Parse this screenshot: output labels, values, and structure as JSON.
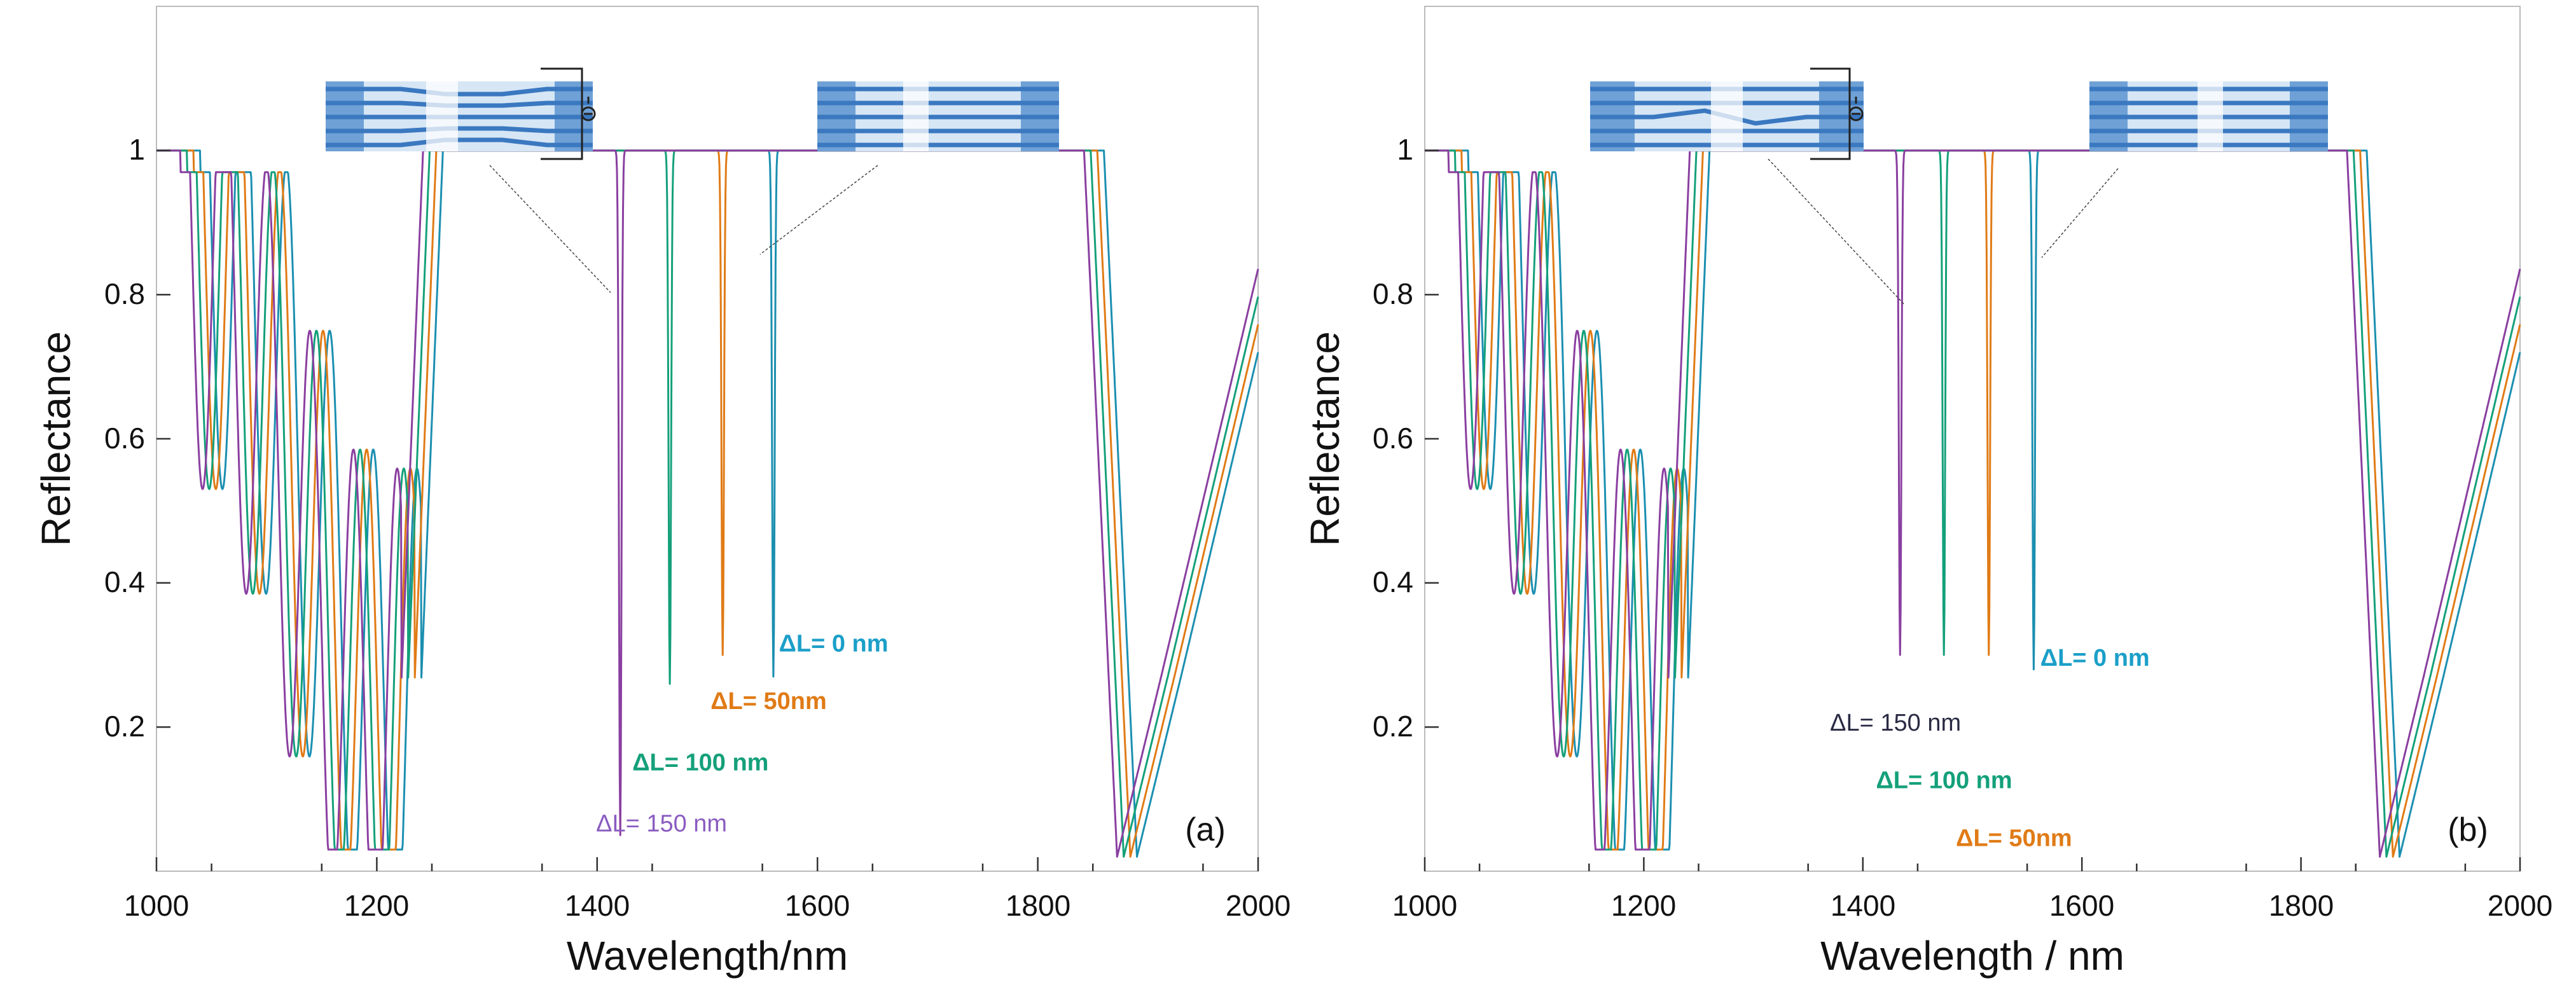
{
  "chart_data": [
    {
      "type": "line",
      "panel_label": "(a)",
      "xlabel": "Wavelength/nm",
      "ylabel": "Reflectance",
      "xlim": [
        1000,
        2000
      ],
      "ylim": [
        0,
        1.2
      ],
      "x_ticks": [
        1000,
        1200,
        1400,
        1600,
        1800,
        2000
      ],
      "x_tick_labels": [
        "1000",
        "1200",
        "1400",
        "1600",
        "1800",
        "2000"
      ],
      "y_ticks": [
        0.2,
        0.4,
        0.6,
        0.8,
        1.0
      ],
      "y_tick_labels": [
        "0.2",
        "0.4",
        "0.6",
        "0.8",
        "1"
      ],
      "grid": false,
      "series": [
        {
          "name": "ΔL= 0 nm",
          "color": "#1b8fb0",
          "dip_x": 1560,
          "dip_y": 0.27,
          "shift": 0
        },
        {
          "name": "ΔL= 50nm",
          "color": "#e07b16",
          "dip_x": 1514,
          "dip_y": 0.3,
          "shift": -6
        },
        {
          "name": "ΔL= 100 nm",
          "color": "#14a07a",
          "dip_x": 1466,
          "dip_y": 0.26,
          "shift": -12
        },
        {
          "name": "ΔL= 150 nm",
          "color": "#8a3fa0",
          "dip_x": 1421,
          "dip_y": 0.05,
          "shift": -18
        }
      ],
      "annotations": [
        {
          "text": "ΔL= 0 nm",
          "color": "#1b9fc8",
          "bold": true,
          "x": 1565,
          "y": 0.305
        },
        {
          "text": "ΔL= 50nm",
          "color": "#e07b16",
          "bold": true,
          "x": 1503,
          "y": 0.225
        },
        {
          "text": "ΔL= 100 nm",
          "color": "#14a07a",
          "bold": true,
          "x": 1432,
          "y": 0.14
        },
        {
          "text": "ΔL= 150 nm",
          "color": "#8a5cc0",
          "bold": false,
          "x": 1399,
          "y": 0.055
        }
      ]
    },
    {
      "type": "line",
      "panel_label": "(b)",
      "xlabel": "Wavelength / nm",
      "ylabel": "Reflectance",
      "xlim": [
        1000,
        2000
      ],
      "ylim": [
        0,
        1.2
      ],
      "x_ticks": [
        1000,
        1200,
        1400,
        1600,
        1800,
        2000
      ],
      "x_tick_labels": [
        "1000",
        "1200",
        "1400",
        "1600",
        "1800",
        "2000"
      ],
      "y_ticks": [
        0.2,
        0.4,
        0.6,
        0.8,
        1.0
      ],
      "y_tick_labels": [
        "0.2",
        "0.4",
        "0.6",
        "0.8",
        "1"
      ],
      "grid": false,
      "series": [
        {
          "name": "ΔL= 0 nm",
          "color": "#1b8fb0",
          "dip_x": 1556,
          "dip_y": 0.28,
          "shift": 0
        },
        {
          "name": "ΔL= 50nm",
          "color": "#e07b16",
          "dip_x": 1515,
          "dip_y": 0.3,
          "shift": -6
        },
        {
          "name": "ΔL= 100 nm",
          "color": "#14a07a",
          "dip_x": 1474,
          "dip_y": 0.3,
          "shift": -12
        },
        {
          "name": "ΔL= 150 nm",
          "color": "#8a3fa0",
          "dip_x": 1434,
          "dip_y": 0.3,
          "shift": -18
        }
      ],
      "annotations": [
        {
          "text": "ΔL= 0 nm",
          "color": "#1b9fc8",
          "bold": true,
          "x": 1562,
          "y": 0.285
        },
        {
          "text": "ΔL= 150 nm",
          "color": "#2a2a44",
          "bold": false,
          "x": 1370,
          "y": 0.195
        },
        {
          "text": "ΔL= 100 nm",
          "color": "#14a07a",
          "bold": true,
          "x": 1412,
          "y": 0.115
        },
        {
          "text": "ΔL= 50nm",
          "color": "#e07b16",
          "bold": true,
          "x": 1485,
          "y": 0.035
        }
      ]
    }
  ]
}
